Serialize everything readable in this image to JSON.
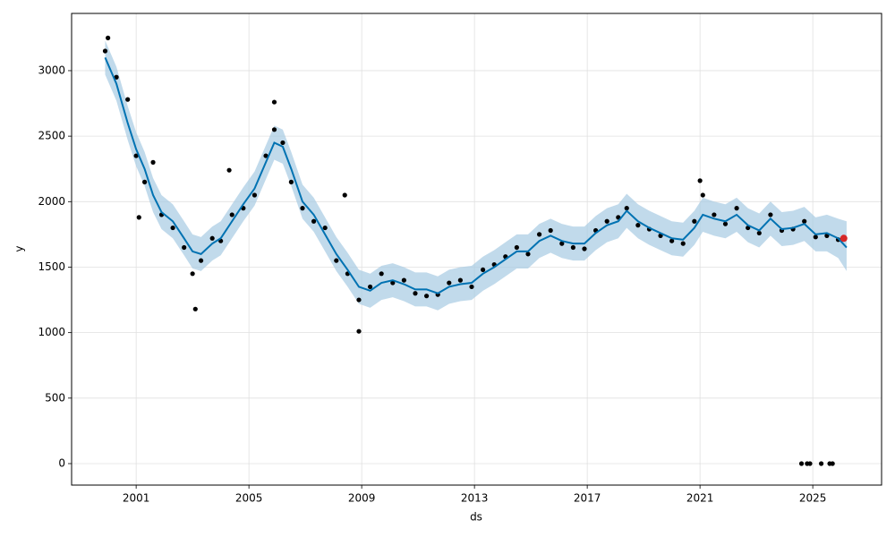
{
  "chart_data": {
    "type": "line",
    "x_label": "ds",
    "y_label": "y",
    "xlim": [
      1998.71,
      2027.44
    ],
    "ylim": [
      -164,
      3437
    ],
    "xticks": [
      2001,
      2005,
      2009,
      2013,
      2017,
      2021,
      2025
    ],
    "yticks": [
      0,
      500,
      1000,
      1500,
      2000,
      2500,
      3000
    ],
    "grid": true,
    "x": [
      1999.9,
      2000.3,
      2000.7,
      2001.0,
      2001.3,
      2001.6,
      2001.9,
      2002.3,
      2002.7,
      2003.0,
      2003.3,
      2003.7,
      2004.0,
      2004.4,
      2004.8,
      2005.2,
      2005.6,
      2005.9,
      2006.2,
      2006.5,
      2006.9,
      2007.3,
      2007.7,
      2008.1,
      2008.5,
      2008.9,
      2009.3,
      2009.7,
      2010.1,
      2010.5,
      2010.9,
      2011.3,
      2011.7,
      2012.1,
      2012.5,
      2012.9,
      2013.3,
      2013.7,
      2014.1,
      2014.5,
      2014.9,
      2015.3,
      2015.7,
      2016.1,
      2016.5,
      2016.9,
      2017.3,
      2017.7,
      2018.1,
      2018.4,
      2018.8,
      2019.2,
      2019.6,
      2020.0,
      2020.4,
      2020.8,
      2021.1,
      2021.5,
      2021.9,
      2022.3,
      2022.7,
      2023.1,
      2023.5,
      2023.9,
      2024.3,
      2024.7,
      2025.1,
      2025.5,
      2025.9,
      2026.2
    ],
    "band": {
      "color": "#a6cbe3",
      "lower": [
        2970,
        2770,
        2470,
        2270,
        2120,
        1920,
        1790,
        1720,
        1590,
        1490,
        1470,
        1550,
        1590,
        1720,
        1850,
        1970,
        2170,
        2320,
        2290,
        2120,
        1870,
        1770,
        1620,
        1470,
        1350,
        1220,
        1190,
        1250,
        1270,
        1240,
        1200,
        1200,
        1170,
        1220,
        1240,
        1250,
        1320,
        1370,
        1430,
        1490,
        1490,
        1570,
        1610,
        1570,
        1550,
        1550,
        1630,
        1690,
        1720,
        1800,
        1720,
        1670,
        1630,
        1590,
        1580,
        1670,
        1770,
        1740,
        1720,
        1770,
        1690,
        1650,
        1740,
        1660,
        1670,
        1700,
        1620,
        1620,
        1570,
        1470
      ],
      "upper": [
        3230,
        3030,
        2730,
        2530,
        2380,
        2180,
        2050,
        1980,
        1850,
        1750,
        1730,
        1810,
        1850,
        1980,
        2110,
        2230,
        2430,
        2580,
        2550,
        2380,
        2130,
        2030,
        1880,
        1730,
        1610,
        1480,
        1450,
        1510,
        1530,
        1500,
        1460,
        1460,
        1430,
        1480,
        1500,
        1510,
        1580,
        1630,
        1690,
        1750,
        1750,
        1830,
        1870,
        1830,
        1810,
        1810,
        1890,
        1950,
        1980,
        2060,
        1980,
        1930,
        1890,
        1850,
        1840,
        1930,
        2030,
        2000,
        1980,
        2030,
        1950,
        1910,
        2000,
        1920,
        1930,
        1960,
        1880,
        1900,
        1870,
        1850
      ]
    },
    "forecast": {
      "color": "#0072b2",
      "values": [
        3100,
        2900,
        2600,
        2400,
        2250,
        2050,
        1920,
        1850,
        1720,
        1620,
        1600,
        1680,
        1720,
        1850,
        1980,
        2100,
        2300,
        2450,
        2420,
        2250,
        2000,
        1900,
        1750,
        1600,
        1480,
        1350,
        1320,
        1380,
        1400,
        1370,
        1330,
        1330,
        1300,
        1350,
        1370,
        1380,
        1450,
        1500,
        1560,
        1620,
        1620,
        1700,
        1740,
        1700,
        1680,
        1680,
        1760,
        1820,
        1850,
        1930,
        1850,
        1800,
        1760,
        1720,
        1710,
        1800,
        1900,
        1870,
        1850,
        1900,
        1820,
        1780,
        1870,
        1790,
        1800,
        1830,
        1750,
        1760,
        1720,
        1650
      ]
    },
    "observed": {
      "color": "#000000",
      "x": [
        1999.9,
        2000.3,
        2000.7,
        2001.0,
        2001.3,
        2001.6,
        2001.9,
        2002.3,
        2002.7,
        2003.0,
        2003.3,
        2003.7,
        2004.0,
        2004.4,
        2004.8,
        2005.2,
        2005.6,
        2005.9,
        2006.2,
        2006.5,
        2006.9,
        2007.3,
        2007.7,
        2008.1,
        2008.5,
        2008.9,
        2009.3,
        2009.7,
        2010.1,
        2010.5,
        2010.9,
        2011.3,
        2011.7,
        2012.1,
        2012.5,
        2012.9,
        2013.3,
        2013.7,
        2014.1,
        2014.5,
        2014.9,
        2015.3,
        2015.7,
        2016.1,
        2016.5,
        2016.9,
        2017.3,
        2017.7,
        2018.1,
        2018.4,
        2018.8,
        2019.2,
        2019.6,
        2020.0,
        2020.4,
        2020.8,
        2021.1,
        2021.5,
        2021.9,
        2022.3,
        2022.7,
        2023.1,
        2023.5,
        2023.9,
        2024.3,
        2024.7,
        2025.1,
        2025.5,
        2025.9,
        2000.0,
        2001.1,
        2003.1,
        2004.3,
        2005.9,
        2008.4,
        2008.9,
        2021.0,
        2024.6,
        2024.8,
        2024.9,
        2025.3,
        2025.6,
        2025.7
      ],
      "values": [
        3150,
        2950,
        2780,
        2350,
        2150,
        2300,
        1900,
        1800,
        1650,
        1450,
        1550,
        1720,
        1700,
        1900,
        1950,
        2050,
        2350,
        2550,
        2450,
        2150,
        1950,
        1850,
        1800,
        1550,
        1450,
        1250,
        1350,
        1450,
        1380,
        1400,
        1300,
        1280,
        1290,
        1380,
        1400,
        1350,
        1480,
        1520,
        1580,
        1650,
        1600,
        1750,
        1780,
        1680,
        1650,
        1640,
        1780,
        1850,
        1880,
        1950,
        1820,
        1790,
        1740,
        1700,
        1680,
        1850,
        2050,
        1900,
        1830,
        1950,
        1800,
        1760,
        1900,
        1780,
        1790,
        1850,
        1730,
        1740,
        1710,
        3250,
        1880,
        1180,
        2240,
        2760,
        2050,
        1010,
        2160,
        0,
        0,
        0,
        0,
        0,
        0
      ]
    },
    "future": {
      "color": "#d62728",
      "x": [
        2026.1
      ],
      "values": [
        1720
      ]
    }
  }
}
